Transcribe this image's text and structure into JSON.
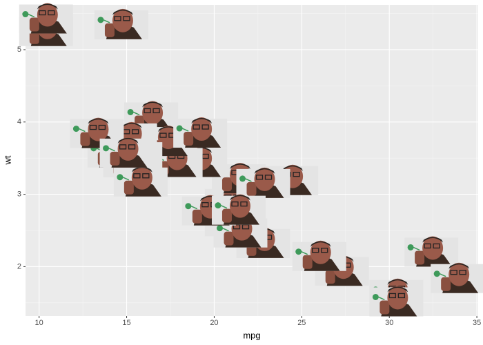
{
  "chart_data": {
    "type": "scatter",
    "x_label": "mpg",
    "y_label": "wt",
    "x": [
      21.0,
      21.0,
      22.8,
      21.4,
      18.7,
      18.1,
      14.3,
      24.4,
      22.8,
      19.2,
      17.8,
      16.4,
      17.3,
      15.2,
      10.4,
      10.4,
      14.7,
      32.4,
      30.4,
      33.9,
      21.5,
      15.5,
      15.2,
      13.3,
      19.2,
      27.3,
      26.0,
      30.4,
      15.8,
      19.7,
      15.0,
      21.4
    ],
    "values": [
      2.62,
      2.875,
      2.32,
      3.215,
      3.44,
      3.46,
      3.57,
      3.19,
      3.15,
      3.44,
      3.44,
      4.07,
      3.73,
      3.78,
      5.25,
      5.424,
      5.345,
      2.2,
      1.615,
      1.835,
      2.465,
      3.52,
      3.435,
      3.84,
      3.845,
      1.935,
      2.14,
      1.513,
      3.17,
      2.77,
      3.57,
      2.78
    ],
    "xlim": [
      9.225,
      35.075
    ],
    "ylim": [
      1.317,
      5.62
    ],
    "xticks": [
      10,
      15,
      20,
      25,
      30,
      35
    ],
    "yticks": [
      2,
      3,
      4,
      5
    ],
    "grid": true
  }
}
